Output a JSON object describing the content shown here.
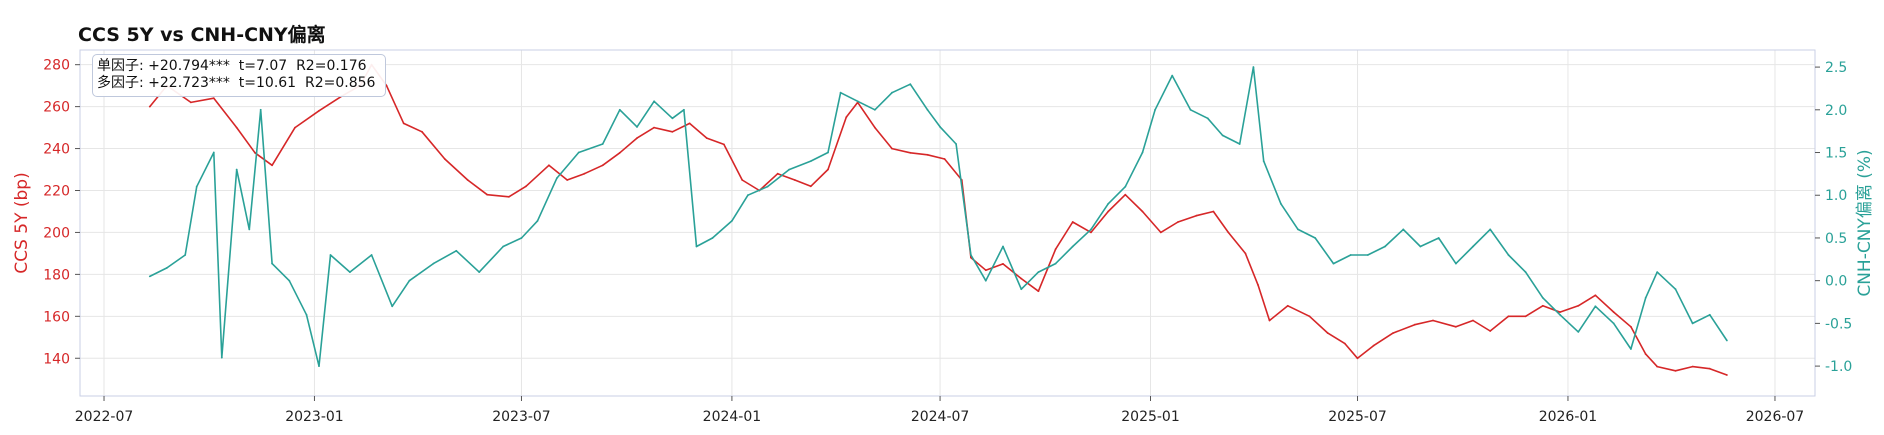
{
  "title": "CCS 5Y vs CNH-CNY偏离",
  "annotation": {
    "line1": "单因子: +20.794***  t=7.07  R2=0.176",
    "line2": "多因子: +22.723***  t=10.61  R2=0.856"
  },
  "colors": {
    "ccs": "#d62728",
    "dev": "#2aa198",
    "grid": "#e6e6e6",
    "spine": "#c9cfe6"
  },
  "chart_data": {
    "type": "line",
    "title": "CCS 5Y vs CNH-CNY偏离",
    "ylabel": "CCS 5Y (bp)",
    "y2label": "CNH-CNY偏离 (%)",
    "xlim": [
      "2022-06-10",
      "2026-08-05"
    ],
    "ylim": [
      122,
      287
    ],
    "y2lim": [
      -1.35,
      2.7
    ],
    "x_ticks": [
      "2022-07",
      "2023-01",
      "2023-07",
      "2024-01",
      "2024-07",
      "2025-01",
      "2025-07",
      "2026-01",
      "2026-07"
    ],
    "y_ticks": [
      140,
      160,
      180,
      200,
      220,
      240,
      260,
      280
    ],
    "y2_ticks": [
      "-1.0",
      "-0.5",
      "0.0",
      "0.5",
      "1.0",
      "1.5",
      "2.0",
      "2.5"
    ],
    "grid": true,
    "series": [
      {
        "name": "CCS 5Y (bp)",
        "axis": "left",
        "points": [
          [
            "2022-08-10",
            260
          ],
          [
            "2022-08-25",
            270
          ],
          [
            "2022-09-15",
            262
          ],
          [
            "2022-10-05",
            264
          ],
          [
            "2022-10-25",
            250
          ],
          [
            "2022-11-10",
            238
          ],
          [
            "2022-11-25",
            232
          ],
          [
            "2022-12-15",
            250
          ],
          [
            "2023-01-05",
            258
          ],
          [
            "2023-01-25",
            265
          ],
          [
            "2023-02-10",
            270
          ],
          [
            "2023-02-20",
            280
          ],
          [
            "2023-03-05",
            270
          ],
          [
            "2023-03-20",
            252
          ],
          [
            "2023-04-05",
            248
          ],
          [
            "2023-04-25",
            235
          ],
          [
            "2023-05-15",
            225
          ],
          [
            "2023-06-01",
            218
          ],
          [
            "2023-06-20",
            217
          ],
          [
            "2023-07-05",
            222
          ],
          [
            "2023-07-25",
            232
          ],
          [
            "2023-08-10",
            225
          ],
          [
            "2023-08-25",
            228
          ],
          [
            "2023-09-10",
            232
          ],
          [
            "2023-09-25",
            238
          ],
          [
            "2023-10-10",
            245
          ],
          [
            "2023-10-25",
            250
          ],
          [
            "2023-11-10",
            248
          ],
          [
            "2023-11-25",
            252
          ],
          [
            "2023-12-10",
            245
          ],
          [
            "2023-12-25",
            242
          ],
          [
            "2024-01-10",
            225
          ],
          [
            "2024-01-25",
            220
          ],
          [
            "2024-02-10",
            228
          ],
          [
            "2024-02-25",
            225
          ],
          [
            "2024-03-10",
            222
          ],
          [
            "2024-03-25",
            230
          ],
          [
            "2024-04-10",
            255
          ],
          [
            "2024-04-20",
            262
          ],
          [
            "2024-05-05",
            250
          ],
          [
            "2024-05-20",
            240
          ],
          [
            "2024-06-05",
            238
          ],
          [
            "2024-06-20",
            237
          ],
          [
            "2024-07-05",
            235
          ],
          [
            "2024-07-20",
            225
          ],
          [
            "2024-07-28",
            188
          ],
          [
            "2024-08-10",
            182
          ],
          [
            "2024-08-25",
            185
          ],
          [
            "2024-09-10",
            178
          ],
          [
            "2024-09-25",
            172
          ],
          [
            "2024-10-10",
            192
          ],
          [
            "2024-10-25",
            205
          ],
          [
            "2024-11-10",
            200
          ],
          [
            "2024-11-25",
            210
          ],
          [
            "2024-12-10",
            218
          ],
          [
            "2024-12-25",
            210
          ],
          [
            "2025-01-10",
            200
          ],
          [
            "2025-01-25",
            205
          ],
          [
            "2025-02-10",
            208
          ],
          [
            "2025-02-25",
            210
          ],
          [
            "2025-03-10",
            200
          ],
          [
            "2025-03-25",
            190
          ],
          [
            "2025-04-05",
            175
          ],
          [
            "2025-04-15",
            158
          ],
          [
            "2025-05-01",
            165
          ],
          [
            "2025-05-20",
            160
          ],
          [
            "2025-06-05",
            152
          ],
          [
            "2025-06-20",
            147
          ],
          [
            "2025-07-01",
            140
          ],
          [
            "2025-07-15",
            146
          ],
          [
            "2025-08-01",
            152
          ],
          [
            "2025-08-20",
            156
          ],
          [
            "2025-09-05",
            158
          ],
          [
            "2025-09-25",
            155
          ],
          [
            "2025-10-10",
            158
          ],
          [
            "2025-10-25",
            153
          ],
          [
            "2025-11-10",
            160
          ],
          [
            "2025-11-25",
            160
          ],
          [
            "2025-12-10",
            165
          ],
          [
            "2025-12-25",
            162
          ],
          [
            "2026-01-10",
            165
          ],
          [
            "2026-01-25",
            170
          ],
          [
            "2026-02-10",
            162
          ],
          [
            "2026-02-25",
            155
          ],
          [
            "2026-03-10",
            142
          ],
          [
            "2026-03-20",
            136
          ],
          [
            "2026-04-05",
            134
          ],
          [
            "2026-04-20",
            136
          ],
          [
            "2026-05-05",
            135
          ],
          [
            "2026-05-20",
            132
          ]
        ]
      },
      {
        "name": "CNH-CNY偏离 (%)",
        "axis": "right",
        "points": [
          [
            "2022-08-10",
            0.05
          ],
          [
            "2022-08-25",
            0.15
          ],
          [
            "2022-09-10",
            0.3
          ],
          [
            "2022-09-20",
            1.1
          ],
          [
            "2022-10-05",
            1.5
          ],
          [
            "2022-10-12",
            -0.9
          ],
          [
            "2022-10-25",
            1.3
          ],
          [
            "2022-11-05",
            0.6
          ],
          [
            "2022-11-15",
            2.0
          ],
          [
            "2022-11-25",
            0.2
          ],
          [
            "2022-12-10",
            0.0
          ],
          [
            "2022-12-25",
            -0.4
          ],
          [
            "2023-01-05",
            -1.0
          ],
          [
            "2023-01-15",
            0.3
          ],
          [
            "2023-02-01",
            0.1
          ],
          [
            "2023-02-20",
            0.3
          ],
          [
            "2023-03-10",
            -0.3
          ],
          [
            "2023-03-25",
            0.0
          ],
          [
            "2023-04-15",
            0.2
          ],
          [
            "2023-05-05",
            0.35
          ],
          [
            "2023-05-25",
            0.1
          ],
          [
            "2023-06-15",
            0.4
          ],
          [
            "2023-07-01",
            0.5
          ],
          [
            "2023-07-15",
            0.7
          ],
          [
            "2023-08-01",
            1.2
          ],
          [
            "2023-08-20",
            1.5
          ],
          [
            "2023-09-10",
            1.6
          ],
          [
            "2023-09-25",
            2.0
          ],
          [
            "2023-10-10",
            1.8
          ],
          [
            "2023-10-25",
            2.1
          ],
          [
            "2023-11-10",
            1.9
          ],
          [
            "2023-11-20",
            2.0
          ],
          [
            "2023-12-01",
            0.4
          ],
          [
            "2023-12-15",
            0.5
          ],
          [
            "2024-01-01",
            0.7
          ],
          [
            "2024-01-15",
            1.0
          ],
          [
            "2024-02-01",
            1.1
          ],
          [
            "2024-02-20",
            1.3
          ],
          [
            "2024-03-10",
            1.4
          ],
          [
            "2024-03-25",
            1.5
          ],
          [
            "2024-04-05",
            2.2
          ],
          [
            "2024-04-20",
            2.1
          ],
          [
            "2024-05-05",
            2.0
          ],
          [
            "2024-05-20",
            2.2
          ],
          [
            "2024-06-05",
            2.3
          ],
          [
            "2024-06-20",
            2.0
          ],
          [
            "2024-07-01",
            1.8
          ],
          [
            "2024-07-15",
            1.6
          ],
          [
            "2024-07-28",
            0.3
          ],
          [
            "2024-08-10",
            0.0
          ],
          [
            "2024-08-25",
            0.4
          ],
          [
            "2024-09-10",
            -0.1
          ],
          [
            "2024-09-25",
            0.1
          ],
          [
            "2024-10-10",
            0.2
          ],
          [
            "2024-10-25",
            0.4
          ],
          [
            "2024-11-10",
            0.6
          ],
          [
            "2024-11-25",
            0.9
          ],
          [
            "2024-12-10",
            1.1
          ],
          [
            "2024-12-25",
            1.5
          ],
          [
            "2025-01-05",
            2.0
          ],
          [
            "2025-01-20",
            2.4
          ],
          [
            "2025-02-05",
            2.0
          ],
          [
            "2025-02-20",
            1.9
          ],
          [
            "2025-03-05",
            1.7
          ],
          [
            "2025-03-20",
            1.6
          ],
          [
            "2025-04-01",
            2.5
          ],
          [
            "2025-04-10",
            1.4
          ],
          [
            "2025-04-25",
            0.9
          ],
          [
            "2025-05-10",
            0.6
          ],
          [
            "2025-05-25",
            0.5
          ],
          [
            "2025-06-10",
            0.2
          ],
          [
            "2025-06-25",
            0.3
          ],
          [
            "2025-07-10",
            0.3
          ],
          [
            "2025-07-25",
            0.4
          ],
          [
            "2025-08-10",
            0.6
          ],
          [
            "2025-08-25",
            0.4
          ],
          [
            "2025-09-10",
            0.5
          ],
          [
            "2025-09-25",
            0.2
          ],
          [
            "2025-10-10",
            0.4
          ],
          [
            "2025-10-25",
            0.6
          ],
          [
            "2025-11-10",
            0.3
          ],
          [
            "2025-11-25",
            0.1
          ],
          [
            "2025-12-10",
            -0.2
          ],
          [
            "2025-12-25",
            -0.4
          ],
          [
            "2026-01-10",
            -0.6
          ],
          [
            "2026-01-25",
            -0.3
          ],
          [
            "2026-02-10",
            -0.5
          ],
          [
            "2026-02-25",
            -0.8
          ],
          [
            "2026-03-10",
            -0.2
          ],
          [
            "2026-03-20",
            0.1
          ],
          [
            "2026-04-05",
            -0.1
          ],
          [
            "2026-04-20",
            -0.5
          ],
          [
            "2026-05-05",
            -0.4
          ],
          [
            "2026-05-20",
            -0.7
          ]
        ]
      }
    ]
  }
}
